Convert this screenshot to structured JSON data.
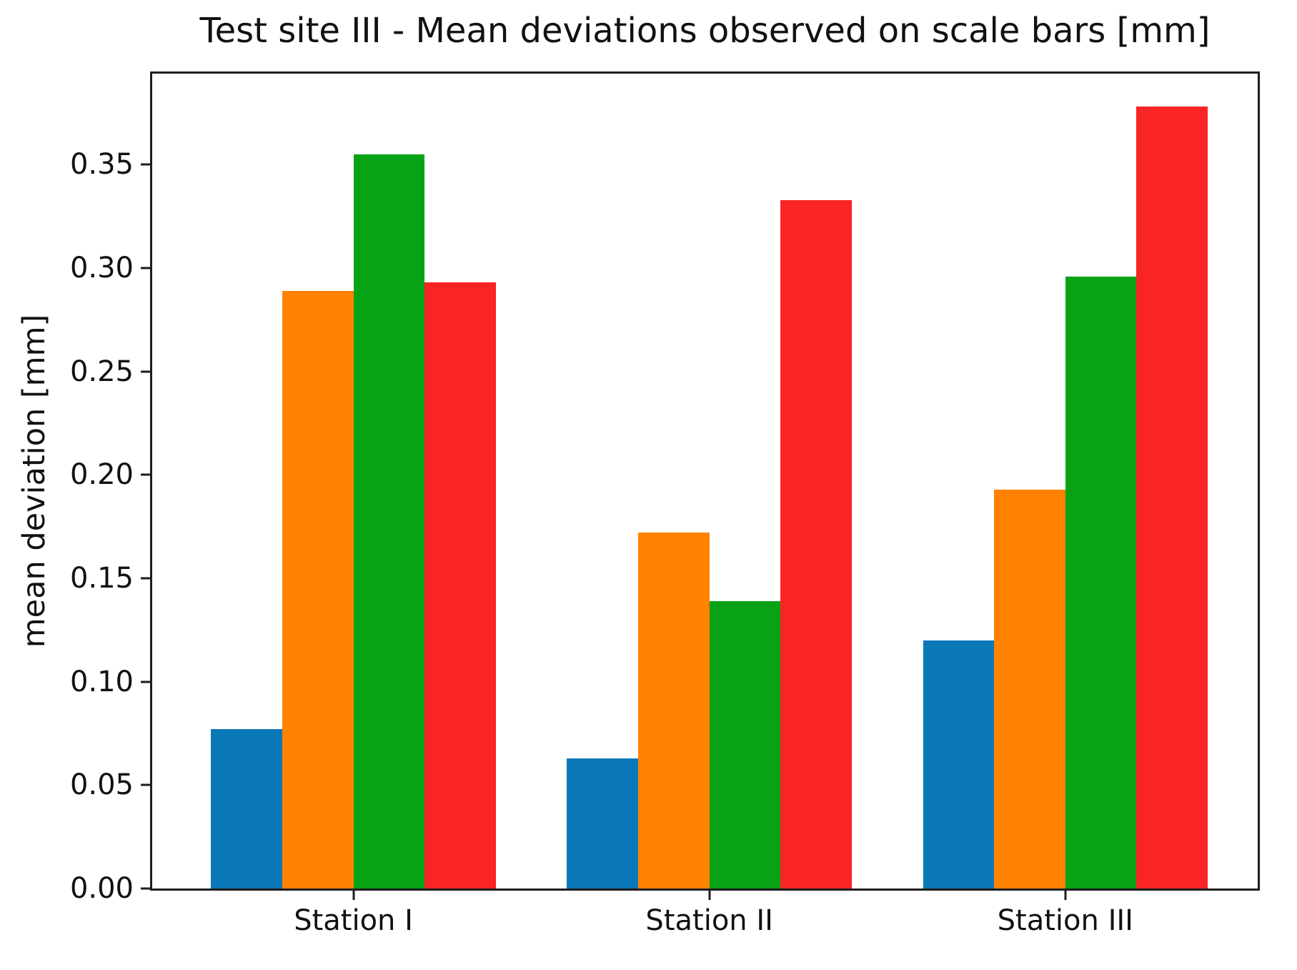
{
  "figure": {
    "title": "Test site III - Mean deviations observed on scale bars [mm]",
    "y_axis_label": "mean deviation [mm]"
  },
  "chart_data": {
    "type": "bar",
    "title": "Test site III - Mean deviations observed on scale bars [mm]",
    "xlabel": "",
    "ylabel": "mean deviation [mm]",
    "categories": [
      "Station I",
      "Station II",
      "Station III"
    ],
    "series": [
      {
        "name": "blue",
        "color": "#0b78b8",
        "values": [
          0.077,
          0.063,
          0.12
        ]
      },
      {
        "name": "orange",
        "color": "#ff8200",
        "values": [
          0.289,
          0.172,
          0.193
        ]
      },
      {
        "name": "green",
        "color": "#08a315",
        "values": [
          0.355,
          0.139,
          0.296
        ]
      },
      {
        "name": "red",
        "color": "#f92424",
        "values": [
          0.293,
          0.333,
          0.378
        ]
      }
    ],
    "y_ticks": [
      "0.00",
      "0.05",
      "0.10",
      "0.15",
      "0.20",
      "0.25",
      "0.30",
      "0.35"
    ],
    "ylim": [
      0,
      0.394
    ],
    "grid": false,
    "legend_position": "none"
  }
}
